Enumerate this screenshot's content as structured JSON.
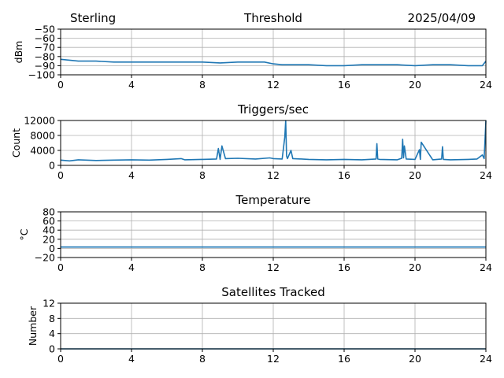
{
  "header": {
    "station": "Sterling",
    "date": "2025/04/09"
  },
  "x_ticks": [
    "0",
    "4",
    "8",
    "12",
    "16",
    "20",
    "24"
  ],
  "chart_data": [
    {
      "type": "line",
      "title": "Threshold",
      "ylabel": "dBm",
      "xlim": [
        0,
        24
      ],
      "ylim": [
        -100,
        -50
      ],
      "yticks": [
        "−50",
        "−60",
        "−70",
        "−80",
        "−90",
        "−100"
      ],
      "ytick_values": [
        -50,
        -60,
        -70,
        -80,
        -90,
        -100
      ],
      "grid": true,
      "series": [
        {
          "x": [
            0,
            0.5,
            1,
            2,
            3,
            4,
            5,
            6,
            7,
            8,
            9,
            10,
            11,
            11.5,
            12,
            12.5,
            13,
            14,
            15,
            16,
            17,
            18,
            19,
            20,
            21,
            22,
            23,
            23.8,
            24
          ],
          "values": [
            -83,
            -84,
            -85,
            -85,
            -86,
            -86,
            -86,
            -86,
            -86,
            -86,
            -87,
            -86,
            -86,
            -86,
            -88,
            -89,
            -89,
            -89,
            -90,
            -90,
            -89,
            -89,
            -89,
            -90,
            -89,
            -89,
            -90,
            -90,
            -85
          ]
        }
      ]
    },
    {
      "type": "line",
      "title": "Triggers/sec",
      "ylabel": "Count",
      "xlim": [
        0,
        24
      ],
      "ylim": [
        0,
        12000
      ],
      "yticks": [
        "12000",
        "8000",
        "4000",
        "0"
      ],
      "ytick_values": [
        12000,
        8000,
        4000,
        0
      ],
      "grid": true,
      "series": [
        {
          "x": [
            0,
            0.5,
            1,
            2,
            3,
            4,
            5,
            6,
            6.8,
            7,
            8,
            8.8,
            8.9,
            9.0,
            9.1,
            9.3,
            10,
            11,
            11.8,
            12,
            12.5,
            12.65,
            12.7,
            12.75,
            12.8,
            13,
            13.1,
            14,
            15,
            16,
            17,
            17.8,
            17.85,
            17.9,
            18,
            19,
            19.25,
            19.3,
            19.35,
            19.4,
            19.5,
            20,
            20.25,
            20.3,
            20.35,
            21,
            21.5,
            21.55,
            21.6,
            22,
            23,
            23.5,
            23.8,
            23.9,
            24
          ],
          "values": [
            1400,
            1200,
            1500,
            1300,
            1400,
            1500,
            1400,
            1600,
            1800,
            1500,
            1600,
            1700,
            4500,
            1600,
            5200,
            1800,
            1900,
            1700,
            2000,
            1800,
            1700,
            7500,
            12000,
            2500,
            1800,
            4000,
            1800,
            1600,
            1500,
            1600,
            1500,
            1700,
            5800,
            1700,
            1600,
            1500,
            1900,
            7000,
            2000,
            5200,
            1700,
            1600,
            4200,
            1600,
            6200,
            1500,
            1700,
            5000,
            1600,
            1500,
            1600,
            1700,
            2800,
            1800,
            12000
          ]
        }
      ]
    },
    {
      "type": "line",
      "title": "Temperature",
      "ylabel": "°C",
      "xlim": [
        0,
        24
      ],
      "ylim": [
        -20,
        80
      ],
      "yticks": [
        "80",
        "60",
        "40",
        "20",
        "0",
        "−20"
      ],
      "ytick_values": [
        80,
        60,
        40,
        20,
        0,
        -20
      ],
      "grid": true,
      "series": [
        {
          "x": [
            0,
            24
          ],
          "values": [
            3,
            3
          ]
        }
      ]
    },
    {
      "type": "line",
      "title": "Satellites Tracked",
      "ylabel": "Number",
      "xlim": [
        0,
        24
      ],
      "ylim": [
        0,
        12
      ],
      "yticks": [
        "12",
        "8",
        "4",
        "0"
      ],
      "ytick_values": [
        12,
        8,
        4,
        0
      ],
      "grid": true,
      "series": [
        {
          "x": [
            0,
            24
          ],
          "values": [
            0,
            0
          ]
        }
      ]
    }
  ],
  "colors": {
    "line": "#1f77b4",
    "grid": "#b0b0b0",
    "axis": "#000000"
  }
}
